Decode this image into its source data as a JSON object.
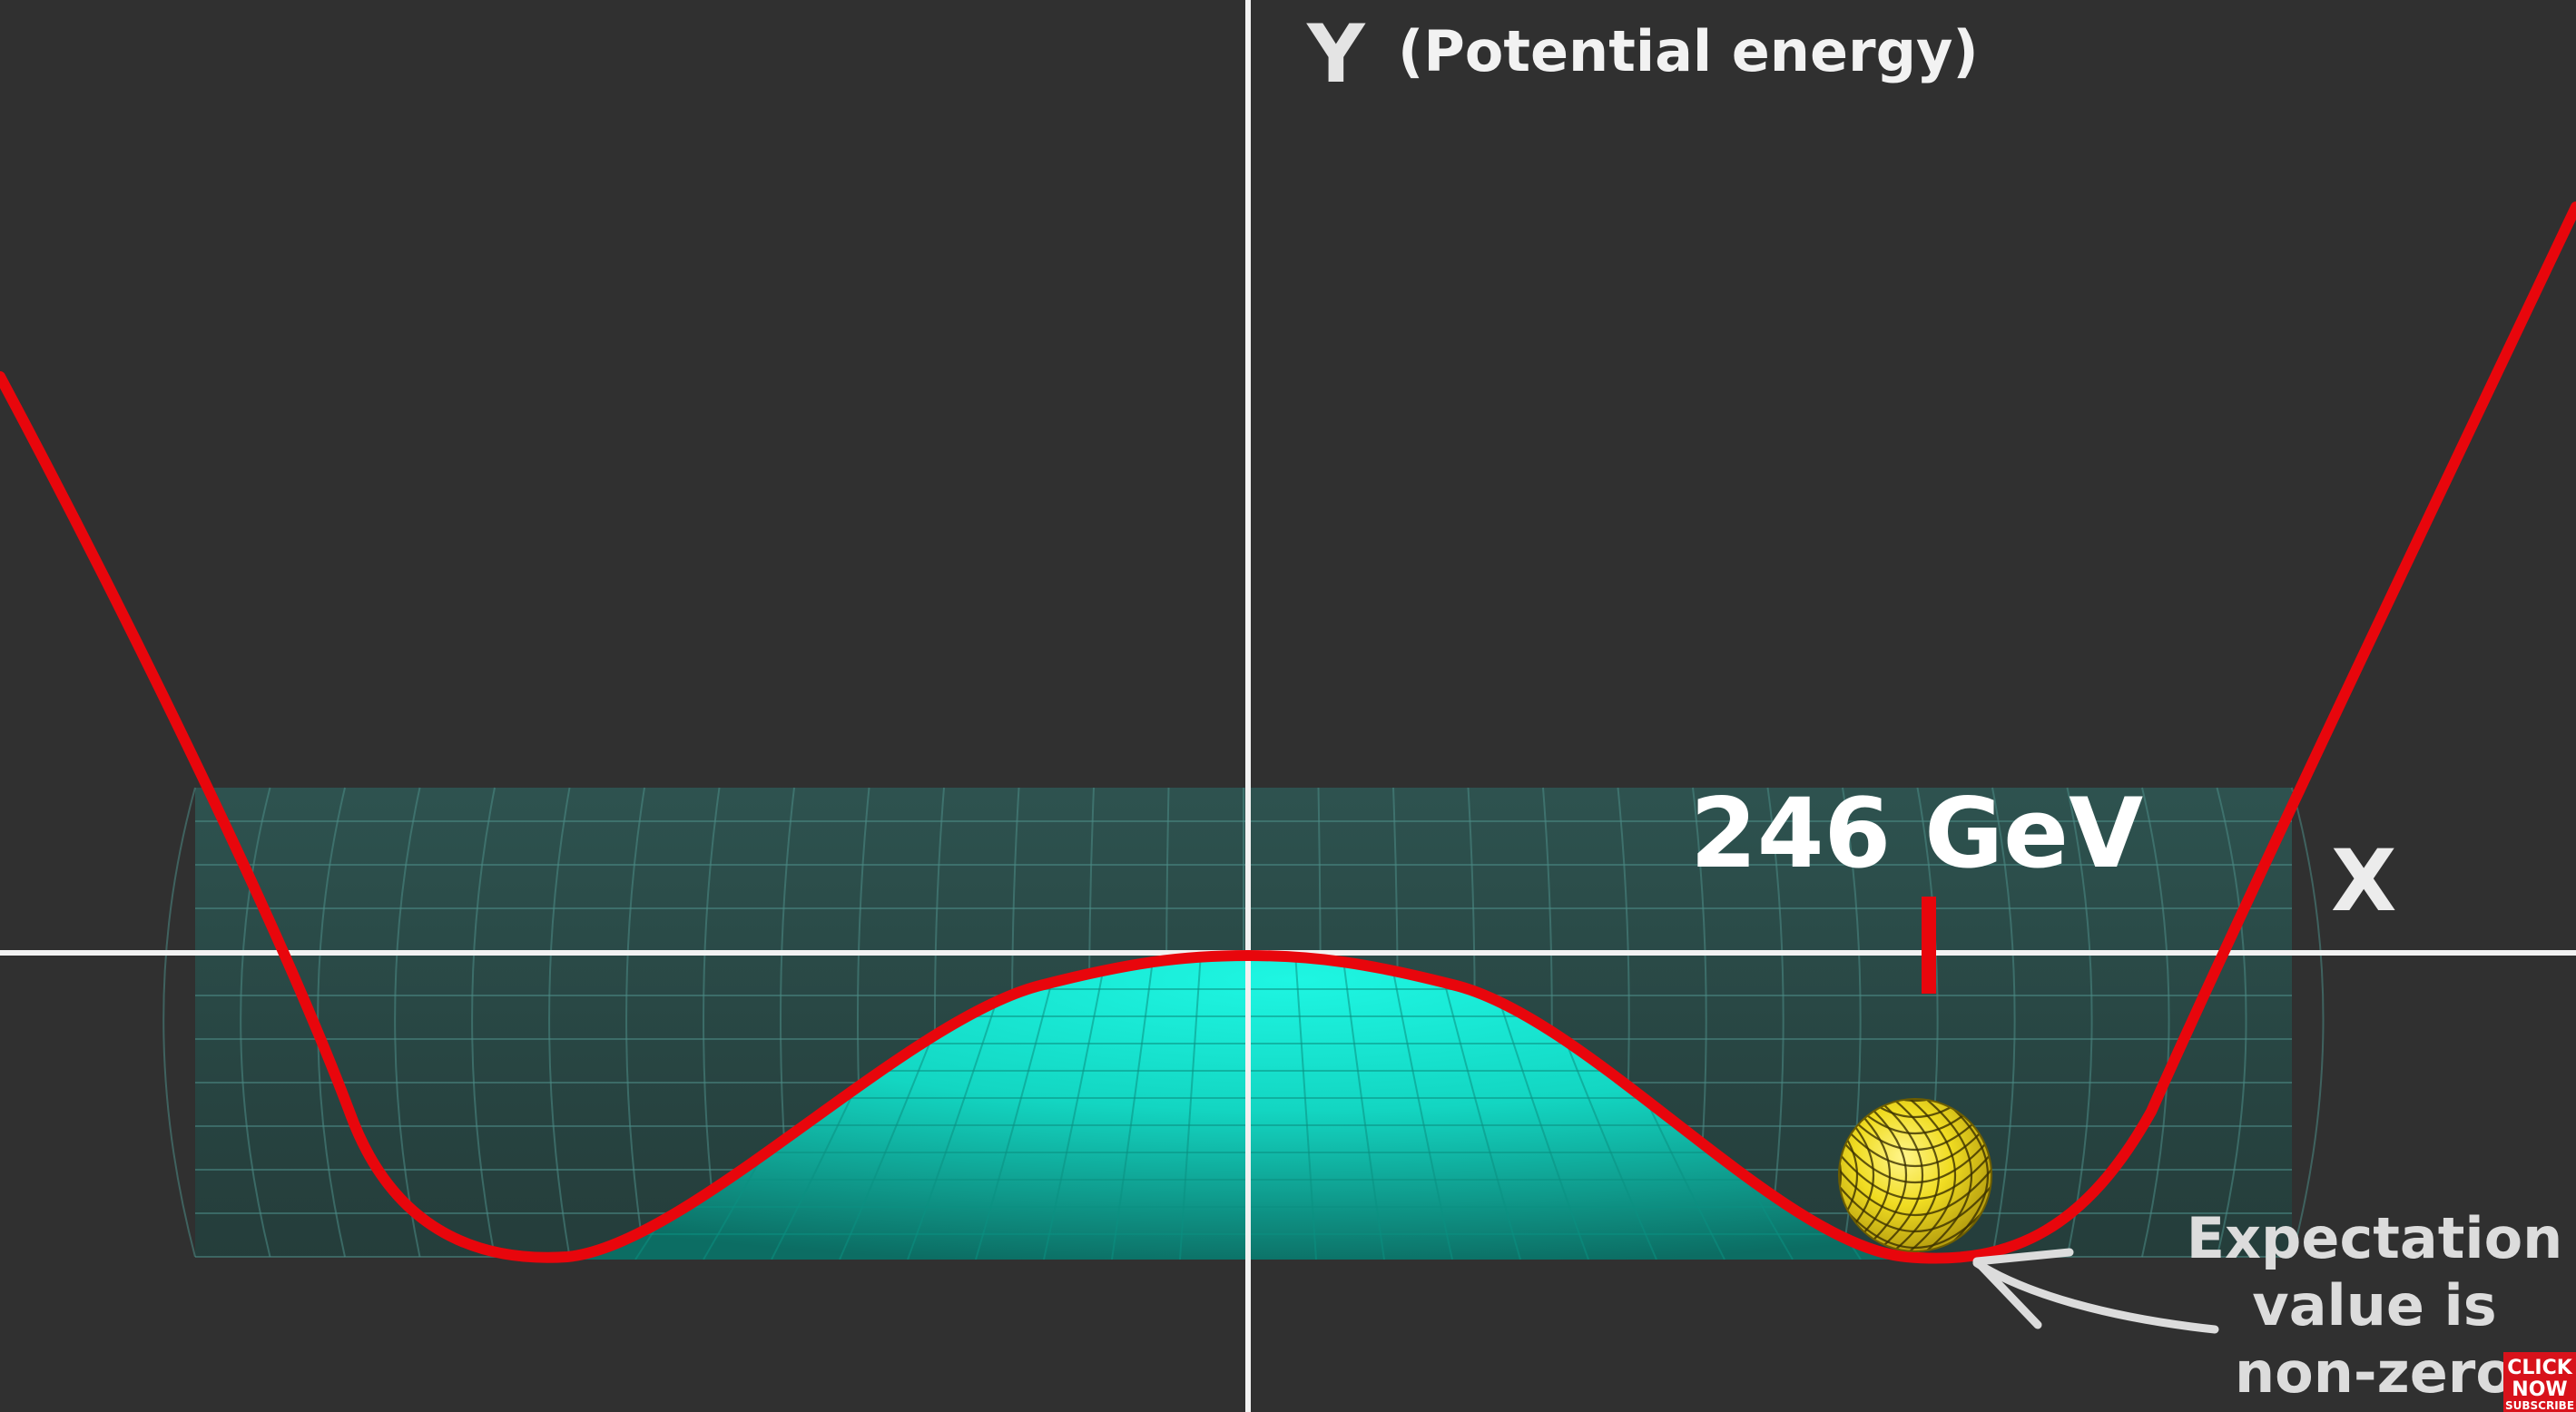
{
  "axes": {
    "y_letter": "Y",
    "y_description": "(Potential energy)",
    "x_letter": "X"
  },
  "vev_label": "246 GeV",
  "annotation": {
    "line1": "Expectation",
    "line2": "value is",
    "line3": "non-zero"
  },
  "badge": {
    "line1": "CLICK",
    "line2": "NOW",
    "line3": "SUBSCRIBE"
  },
  "colors": {
    "background": "#303030",
    "curve": "#e8060c",
    "axes": "#f2f2f2",
    "surface_light": "#17f2dc",
    "surface_dark": "#0f5a52",
    "ball": "#f2de22",
    "badge": "#d8121b"
  }
}
